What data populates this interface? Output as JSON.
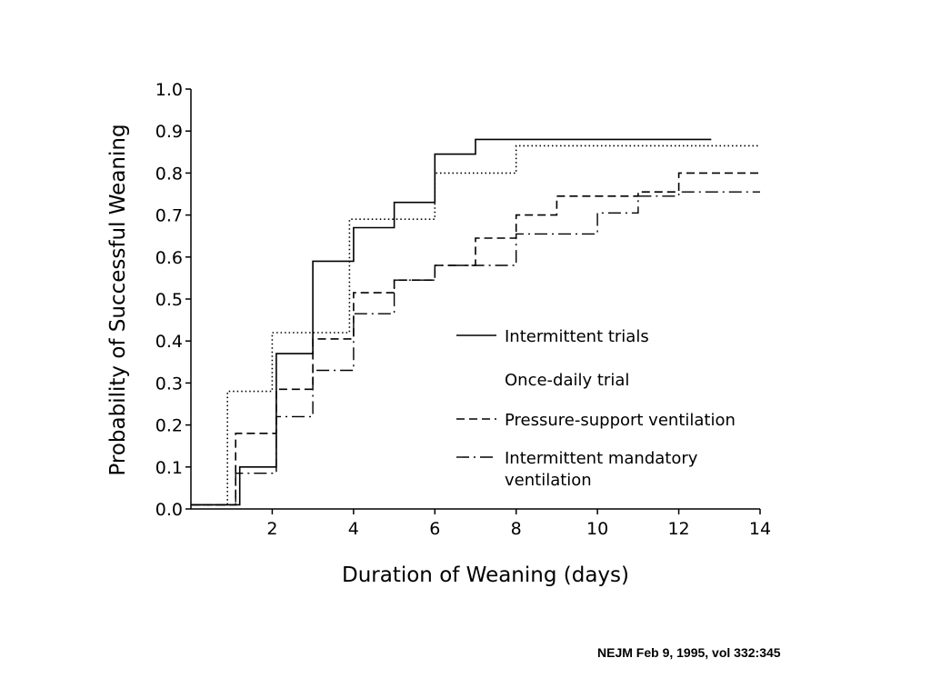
{
  "chart_data": {
    "type": "line",
    "step": true,
    "xlabel": "Duration of Weaning (days)",
    "ylabel": "Probability of Successful Weaning",
    "xlim": [
      0,
      14
    ],
    "ylim": [
      0,
      1.0
    ],
    "x_ticks": [
      2,
      4,
      6,
      8,
      10,
      12,
      14
    ],
    "x_tick_labels": [
      "2",
      "4",
      "6",
      "8",
      "10",
      "12",
      "14"
    ],
    "y_ticks": [
      0,
      0.1,
      0.2,
      0.3,
      0.4,
      0.5,
      0.6,
      0.7,
      0.8,
      0.9,
      1.0
    ],
    "y_tick_labels": [
      "0.0",
      "0.1",
      "0.2",
      "0.3",
      "0.4",
      "0.5",
      "0.6",
      "0.7",
      "0.8",
      "0.9",
      "1.0"
    ],
    "grid": false,
    "legend_position": "center-right",
    "series": [
      {
        "name": "Intermittent trials",
        "style": "solid",
        "points": [
          [
            0,
            0.01
          ],
          [
            1.2,
            0.01
          ],
          [
            1.2,
            0.1
          ],
          [
            2.1,
            0.1
          ],
          [
            2.1,
            0.37
          ],
          [
            3.0,
            0.37
          ],
          [
            3.0,
            0.59
          ],
          [
            4.0,
            0.59
          ],
          [
            4.0,
            0.67
          ],
          [
            5.0,
            0.67
          ],
          [
            5.0,
            0.73
          ],
          [
            6.0,
            0.73
          ],
          [
            6.0,
            0.845
          ],
          [
            7.0,
            0.845
          ],
          [
            7.0,
            0.88
          ],
          [
            12.8,
            0.88
          ]
        ]
      },
      {
        "name": "Once-daily trial",
        "style": "dotted",
        "points": [
          [
            0,
            0.01
          ],
          [
            0.9,
            0.01
          ],
          [
            0.9,
            0.28
          ],
          [
            2.0,
            0.28
          ],
          [
            2.0,
            0.42
          ],
          [
            3.9,
            0.42
          ],
          [
            3.9,
            0.69
          ],
          [
            6.0,
            0.69
          ],
          [
            6.0,
            0.8
          ],
          [
            8.0,
            0.8
          ],
          [
            8.0,
            0.865
          ],
          [
            14.0,
            0.865
          ]
        ]
      },
      {
        "name": "Pressure-support ventilation",
        "style": "dashed",
        "points": [
          [
            0,
            0.01
          ],
          [
            1.1,
            0.01
          ],
          [
            1.1,
            0.18
          ],
          [
            2.1,
            0.18
          ],
          [
            2.1,
            0.285
          ],
          [
            3.0,
            0.285
          ],
          [
            3.0,
            0.405
          ],
          [
            4.0,
            0.405
          ],
          [
            4.0,
            0.515
          ],
          [
            5.0,
            0.515
          ],
          [
            5.0,
            0.545
          ],
          [
            6.0,
            0.545
          ],
          [
            6.0,
            0.58
          ],
          [
            7.0,
            0.58
          ],
          [
            7.0,
            0.645
          ],
          [
            8.0,
            0.645
          ],
          [
            8.0,
            0.7
          ],
          [
            9.0,
            0.7
          ],
          [
            9.0,
            0.745
          ],
          [
            11.0,
            0.745
          ],
          [
            11.0,
            0.755
          ],
          [
            12.0,
            0.755
          ],
          [
            12.0,
            0.8
          ],
          [
            14.0,
            0.8
          ]
        ]
      },
      {
        "name": "Intermittent mandatory ventilation",
        "style": "dash-dot",
        "points": [
          [
            0,
            0.01
          ],
          [
            1.1,
            0.01
          ],
          [
            1.1,
            0.085
          ],
          [
            2.1,
            0.085
          ],
          [
            2.1,
            0.22
          ],
          [
            3.0,
            0.22
          ],
          [
            3.0,
            0.33
          ],
          [
            4.0,
            0.33
          ],
          [
            4.0,
            0.465
          ],
          [
            5.0,
            0.465
          ],
          [
            5.0,
            0.545
          ],
          [
            6.0,
            0.545
          ],
          [
            6.0,
            0.58
          ],
          [
            8.0,
            0.58
          ],
          [
            8.0,
            0.655
          ],
          [
            10.0,
            0.655
          ],
          [
            10.0,
            0.705
          ],
          [
            11.0,
            0.705
          ],
          [
            11.0,
            0.745
          ],
          [
            12.0,
            0.745
          ],
          [
            12.0,
            0.755
          ],
          [
            14.0,
            0.755
          ]
        ]
      }
    ],
    "legend": [
      {
        "label": "Intermittent trials",
        "style": "solid"
      },
      {
        "label": "Once-daily trial",
        "style": "dotted"
      },
      {
        "label": "Pressure-support ventilation",
        "style": "dashed"
      },
      {
        "label": "Intermittent mandatory",
        "label2": "ventilation",
        "style": "dash-dot"
      }
    ]
  },
  "citation": "NEJM Feb 9, 1995, vol 332:345"
}
